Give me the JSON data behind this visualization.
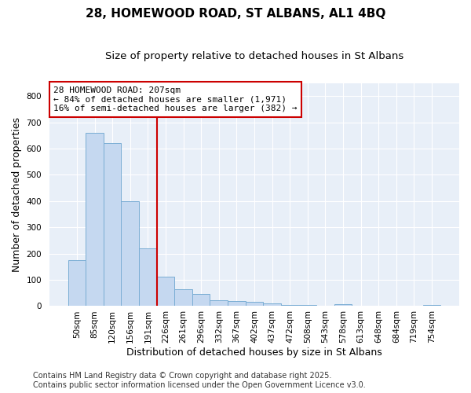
{
  "title": "28, HOMEWOOD ROAD, ST ALBANS, AL1 4BQ",
  "subtitle": "Size of property relative to detached houses in St Albans",
  "xlabel": "Distribution of detached houses by size in St Albans",
  "ylabel": "Number of detached properties",
  "categories": [
    "50sqm",
    "85sqm",
    "120sqm",
    "156sqm",
    "191sqm",
    "226sqm",
    "261sqm",
    "296sqm",
    "332sqm",
    "367sqm",
    "402sqm",
    "437sqm",
    "472sqm",
    "508sqm",
    "543sqm",
    "578sqm",
    "613sqm",
    "648sqm",
    "684sqm",
    "719sqm",
    "754sqm"
  ],
  "values": [
    175,
    660,
    620,
    400,
    220,
    113,
    65,
    47,
    22,
    20,
    15,
    10,
    5,
    4,
    2,
    7,
    1,
    2,
    1,
    1,
    5
  ],
  "bar_color": "#c5d8f0",
  "bar_edge_color": "#7aadd4",
  "vline_x_index": 4,
  "vline_color": "#cc0000",
  "annotation_text": "28 HOMEWOOD ROAD: 207sqm\n← 84% of detached houses are smaller (1,971)\n16% of semi-detached houses are larger (382) →",
  "annotation_box_facecolor": "#ffffff",
  "annotation_box_edgecolor": "#cc0000",
  "ylim": [
    0,
    850
  ],
  "yticks": [
    0,
    100,
    200,
    300,
    400,
    500,
    600,
    700,
    800
  ],
  "bg_color": "#ffffff",
  "plot_bg_color": "#e8eff8",
  "grid_color": "#ffffff",
  "footer": "Contains HM Land Registry data © Crown copyright and database right 2025.\nContains public sector information licensed under the Open Government Licence v3.0.",
  "title_fontsize": 11,
  "subtitle_fontsize": 9.5,
  "axis_label_fontsize": 9,
  "tick_fontsize": 7.5,
  "annotation_fontsize": 8,
  "footer_fontsize": 7
}
